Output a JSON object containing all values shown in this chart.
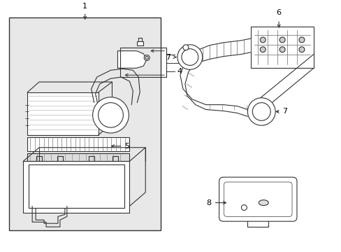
{
  "bg_color": "#ffffff",
  "box_bg": "#e8e8e8",
  "line_color": "#333333",
  "fig_w": 4.89,
  "fig_h": 3.6,
  "dpi": 100
}
